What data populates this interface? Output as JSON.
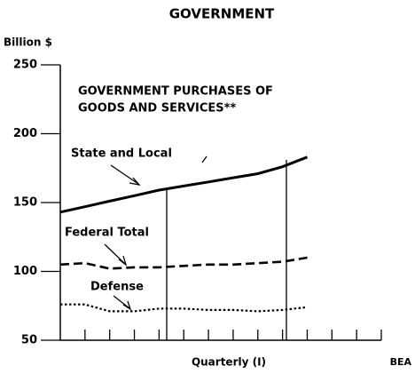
{
  "chart_data": {
    "type": "line",
    "title": "GOVERNMENT",
    "y_label": "Billion $",
    "x_label": "Quarterly (I)",
    "source": "BEA",
    "annotations": [
      "GOVERNMENT PURCHASES OF",
      "GOODS AND SERVICES**"
    ],
    "categories": [
      null,
      null,
      null,
      null,
      null,
      null,
      null,
      null,
      null,
      null,
      null,
      null,
      null
    ],
    "series": [
      {
        "name": "State and Local",
        "color": "#000000",
        "style": "solid",
        "values": [
          143,
          147,
          151,
          155,
          159,
          162,
          165,
          168,
          171,
          176,
          183,
          null,
          null
        ]
      },
      {
        "name": "Federal Total",
        "color": "#000000",
        "style": "dashed",
        "values": [
          105,
          106,
          102,
          103,
          103,
          104,
          105,
          105,
          106,
          107,
          110,
          null,
          null
        ]
      },
      {
        "name": "Defense",
        "color": "#000000",
        "style": "dotted",
        "values": [
          76,
          76,
          71,
          71,
          73,
          73,
          72,
          72,
          71,
          72,
          74,
          null,
          null
        ]
      }
    ],
    "ylim": [
      50,
      250
    ],
    "yticks": [
      50,
      100,
      150,
      200,
      250
    ],
    "grid": false
  }
}
